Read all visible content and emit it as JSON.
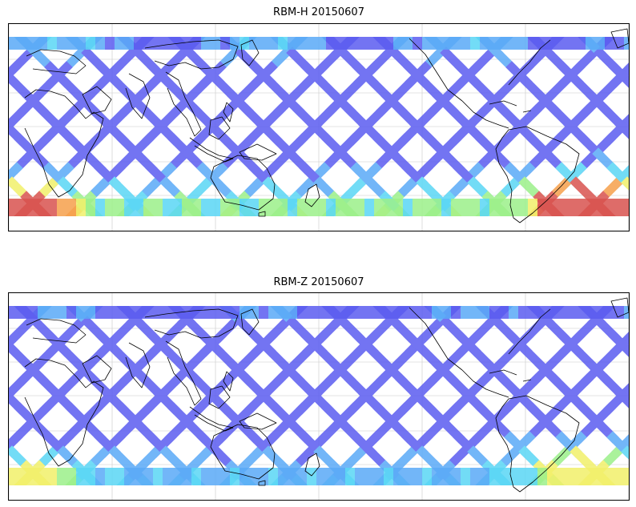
{
  "panels": [
    {
      "title": "RBM-H 20150607",
      "intensity": "high"
    },
    {
      "title": "RBM-Z 20150607",
      "intensity": "low"
    }
  ],
  "colors": {
    "swath_base": "#5b5cf0",
    "swath_mid": "#5aaaf7",
    "cyan": "#5ad7f5",
    "green": "#9cf08a",
    "yellow": "#f2f06a",
    "orange": "#f6a04c",
    "red": "#d9534f",
    "coastline": "#000000",
    "grid": "#c8c8c8"
  }
}
